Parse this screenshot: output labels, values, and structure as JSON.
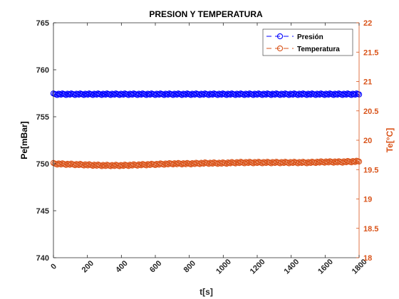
{
  "chart_data": {
    "type": "line",
    "title": "PRESION Y TEMPERATURA",
    "xlabel": "t[s]",
    "ylabel_left": "Pe[mBar]",
    "ylabel_right": "Te[°C]",
    "xlim": [
      0,
      1800
    ],
    "ylim_left": [
      740,
      765
    ],
    "ylim_right": [
      18,
      22
    ],
    "xticks": [
      "0",
      "200",
      "400",
      "600",
      "800",
      "1000",
      "1200",
      "1400",
      "1600",
      "1800"
    ],
    "yticks_left": [
      "740",
      "745",
      "750",
      "755",
      "760",
      "765"
    ],
    "yticks_right": [
      "18",
      "18.5",
      "19",
      "19.5",
      "20",
      "20.5",
      "21",
      "21.5",
      "22"
    ],
    "grid": false,
    "legend_position": "top-right",
    "series": [
      {
        "name": "Presión",
        "axis": "left",
        "color": "#0000ff",
        "marker": "circle",
        "line_style": "dashed",
        "x": [
          0,
          100,
          200,
          300,
          400,
          500,
          600,
          700,
          800,
          900,
          1000,
          1100,
          1200,
          1300,
          1400,
          1500,
          1600,
          1700,
          1800
        ],
        "y": [
          757.4,
          757.4,
          757.4,
          757.4,
          757.4,
          757.4,
          757.4,
          757.4,
          757.4,
          757.4,
          757.4,
          757.4,
          757.4,
          757.4,
          757.4,
          757.4,
          757.4,
          757.4,
          757.4
        ]
      },
      {
        "name": "Temperatura",
        "axis": "right",
        "color": "#d95319",
        "marker": "circle",
        "line_style": "dashed",
        "x": [
          0,
          100,
          200,
          300,
          400,
          500,
          600,
          700,
          800,
          900,
          1000,
          1100,
          1200,
          1300,
          1400,
          1500,
          1600,
          1700,
          1800
        ],
        "y": [
          19.6,
          19.59,
          19.58,
          19.57,
          19.57,
          19.58,
          19.59,
          19.6,
          19.6,
          19.61,
          19.61,
          19.62,
          19.62,
          19.62,
          19.62,
          19.62,
          19.63,
          19.63,
          19.64
        ]
      }
    ]
  }
}
